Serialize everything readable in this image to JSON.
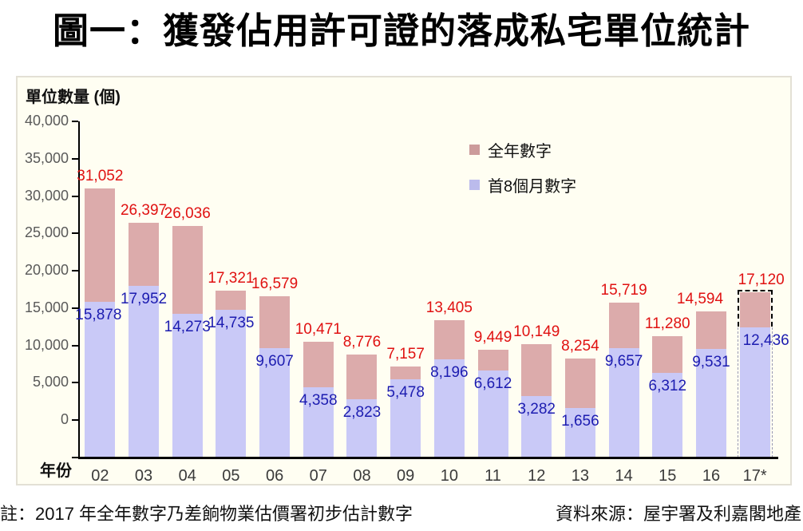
{
  "page_title": "圖一：獲發佔用許可證的落成私宅單位統計",
  "chart": {
    "y_axis_title": "單位數量 (個)",
    "x_axis_title": "年份"
  },
  "legend": {
    "full_year_label": "全年數字",
    "first_8_months_label": "首8個月數字",
    "full_year_swatch_color": "#cc9b9b",
    "first_8_months_swatch_color": "#bbbbec"
  },
  "notes": {
    "footnote": "註：2017 年全年數字乃差餉物業估價署初步估計數字",
    "source": "資料來源：屋宇署及利嘉閣地產"
  },
  "chart_data": {
    "type": "bar",
    "stacked": true,
    "title": "圖一：獲發佔用許可證的落成私宅單位統計",
    "xlabel": "年份",
    "ylabel": "單位數量 (個)",
    "categories": [
      "02",
      "03",
      "04",
      "05",
      "06",
      "07",
      "08",
      "09",
      "10",
      "11",
      "12",
      "13",
      "14",
      "15",
      "16",
      "17*"
    ],
    "series": [
      {
        "name": "全年數字",
        "color": "#dcabab",
        "values": [
          31052,
          26397,
          26036,
          17321,
          16579,
          10471,
          8776,
          7157,
          13405,
          9449,
          10149,
          8254,
          15719,
          11280,
          14594,
          17120
        ]
      },
      {
        "name": "首8個月數字",
        "color": "#c9c9f7",
        "values": [
          15878,
          17952,
          14273,
          14735,
          9607,
          4358,
          2823,
          5478,
          8196,
          6612,
          3282,
          1656,
          9657,
          6312,
          9531,
          12436
        ]
      }
    ],
    "ylim": [
      -5000,
      40000
    ],
    "ytick_step": 5000,
    "ytick_labels": [
      "0",
      "5,000",
      "10,000",
      "15,000",
      "20,000",
      "25,000",
      "30,000",
      "35,000",
      "40,000"
    ],
    "grid": false,
    "legend_position": "inside-top-right",
    "label_colors": {
      "total": "#e01111",
      "first8": "#1c1cb0"
    },
    "highlighted_category": "17*",
    "highlight_style": "dashed-outline"
  }
}
